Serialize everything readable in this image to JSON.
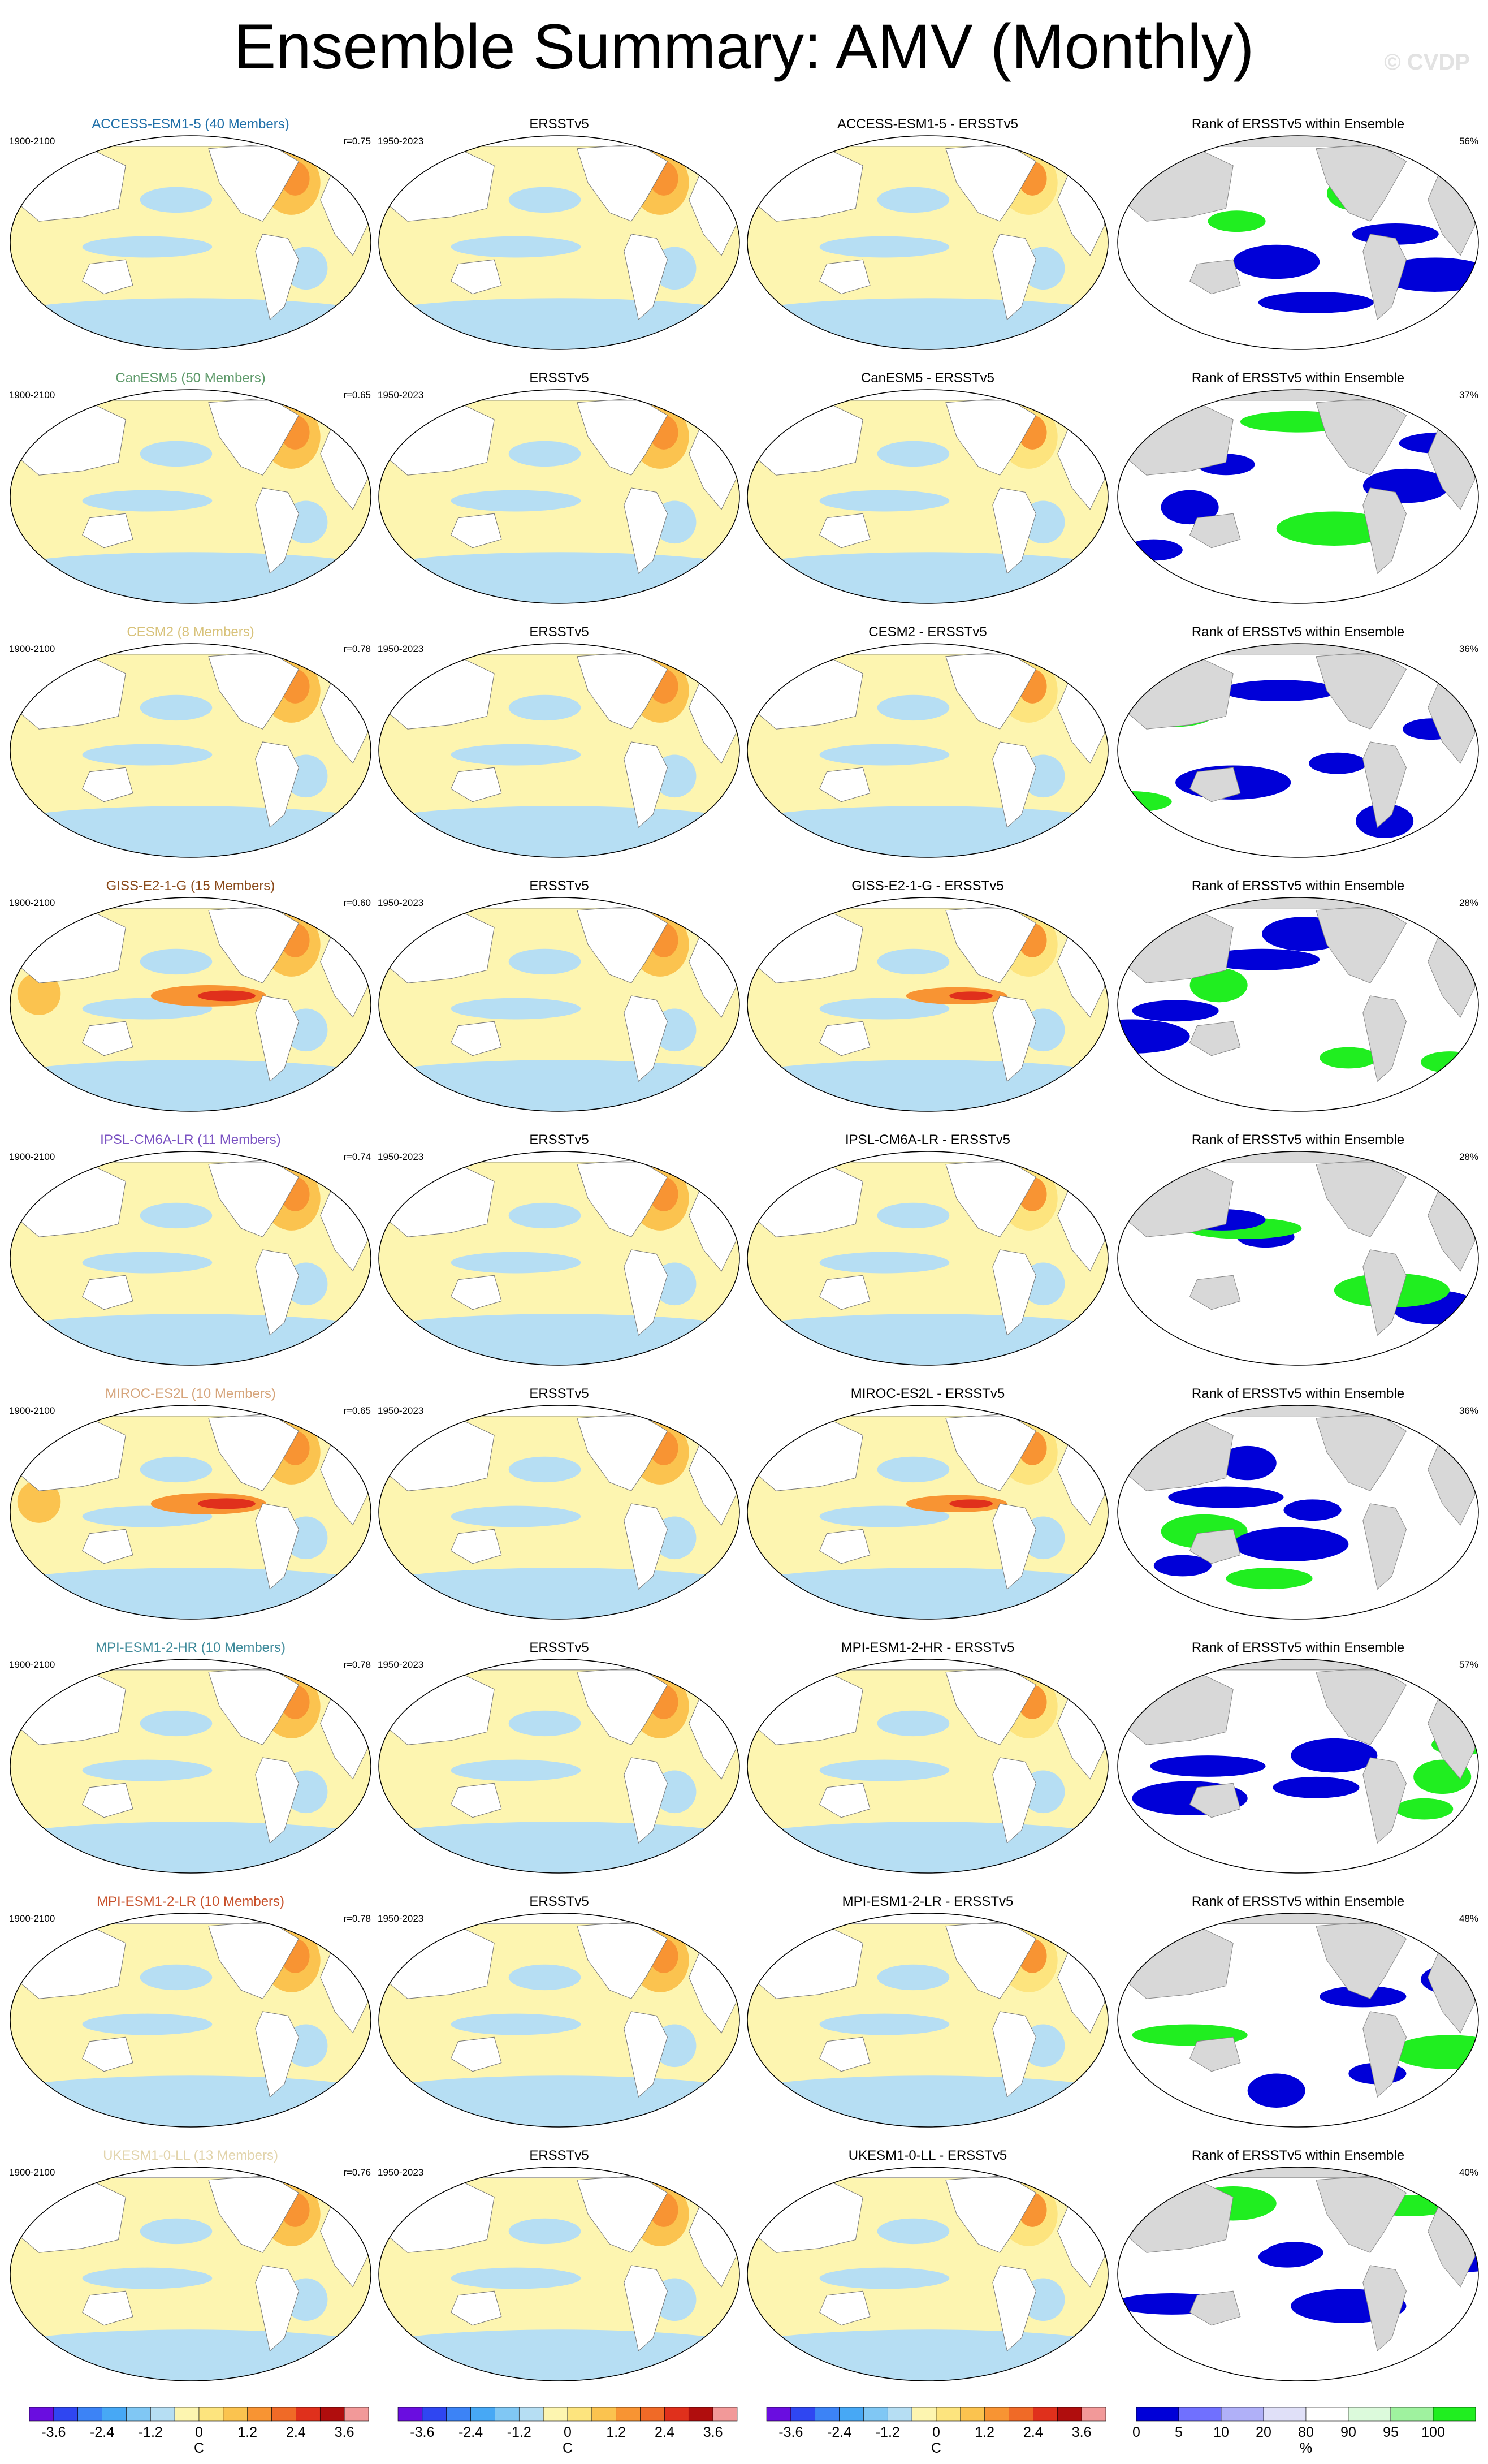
{
  "title": "Ensemble Summary: AMV (Monthly)",
  "credit": "© CVDP",
  "obs_period": "1950-2023",
  "model_period": "1900-2100",
  "obs_title": "ERSSTv5",
  "rank_title": "Rank of ERSSTv5 within Ensemble",
  "colorbar_unit_sst": "C",
  "colorbar_unit_rank": "%",
  "sst_colorbar_ticks": [
    "-3.6",
    "-2.4",
    "-1.2",
    "0",
    "1.2",
    "2.4",
    "3.6"
  ],
  "rank_colorbar_ticks": [
    "0",
    "5",
    "10",
    "20",
    "80",
    "90",
    "95",
    "100"
  ],
  "sst_colors": [
    "#6a0de0",
    "#2f46f2",
    "#3c83f6",
    "#47a8f5",
    "#80c7f4",
    "#b6def3",
    "#fdf5b0",
    "#fde47e",
    "#fbc34f",
    "#f89433",
    "#f06a27",
    "#e0301c",
    "#b00d0d",
    "#f29999"
  ],
  "rank_colors": [
    "#0000d8",
    "#7070ff",
    "#b0b0f8",
    "#e0e0f8",
    "#ffffff",
    "#dcfadc",
    "#9ff29f",
    "#20ee20"
  ],
  "rows": [
    {
      "model": "ACCESS-ESM1-5 (40 Members)",
      "color": "#1f6fa8",
      "r": "r=0.75",
      "diff_title": "ACCESS-ESM1-5 - ERSSTv5",
      "rank_pct": "56%"
    },
    {
      "model": "CanESM5 (50 Members)",
      "color": "#5e9a6a",
      "r": "r=0.65",
      "diff_title": "CanESM5 - ERSSTv5",
      "rank_pct": "37%"
    },
    {
      "model": "CESM2 (8 Members)",
      "color": "#d8c27a",
      "r": "r=0.78",
      "diff_title": "CESM2 - ERSSTv5",
      "rank_pct": "36%"
    },
    {
      "model": "GISS-E2-1-G (15 Members)",
      "color": "#8a4a1a",
      "r": "r=0.60",
      "diff_title": "GISS-E2-1-G - ERSSTv5",
      "rank_pct": "28%"
    },
    {
      "model": "IPSL-CM6A-LR (11 Members)",
      "color": "#7a52c2",
      "r": "r=0.74",
      "diff_title": "IPSL-CM6A-LR - ERSSTv5",
      "rank_pct": "28%"
    },
    {
      "model": "MIROC-ES2L (10 Members)",
      "color": "#d6a47a",
      "r": "r=0.65",
      "diff_title": "MIROC-ES2L - ERSSTv5",
      "rank_pct": "36%"
    },
    {
      "model": "MPI-ESM1-2-HR (10 Members)",
      "color": "#3e8a9a",
      "r": "r=0.78",
      "diff_title": "MPI-ESM1-2-HR - ERSSTv5",
      "rank_pct": "57%"
    },
    {
      "model": "MPI-ESM1-2-LR (10 Members)",
      "color": "#c8502a",
      "r": "r=0.78",
      "diff_title": "MPI-ESM1-2-LR - ERSSTv5",
      "rank_pct": "48%"
    },
    {
      "model": "UKESM1-0-LL (13 Members)",
      "color": "#e2d4ac",
      "r": "r=0.76",
      "diff_title": "UKESM1-0-LL - ERSSTv5",
      "rank_pct": "40%"
    }
  ],
  "chart_data": {
    "type": "heatmap",
    "title": "Ensemble Summary: AMV (Monthly)",
    "panels_per_row": [
      "model ensemble mean AMV pattern",
      "ERSSTv5 observed AMV pattern (1950-2023)",
      "model minus ERSSTv5 difference",
      "rank of ERSSTv5 within ensemble (%)"
    ],
    "sst_colorbar": {
      "unit": "C",
      "ticks": [
        -3.6,
        -2.4,
        -1.2,
        0,
        1.2,
        2.4,
        3.6
      ]
    },
    "rank_colorbar": {
      "unit": "%",
      "ticks": [
        0,
        5,
        10,
        20,
        80,
        90,
        95,
        100
      ]
    },
    "pattern_correlations": [
      {
        "model": "ACCESS-ESM1-5",
        "members": 40,
        "r": 0.75,
        "rank_pct": 56
      },
      {
        "model": "CanESM5",
        "members": 50,
        "r": 0.65,
        "rank_pct": 37
      },
      {
        "model": "CESM2",
        "members": 8,
        "r": 0.78,
        "rank_pct": 36
      },
      {
        "model": "GISS-E2-1-G",
        "members": 15,
        "r": 0.6,
        "rank_pct": 28
      },
      {
        "model": "IPSL-CM6A-LR",
        "members": 11,
        "r": 0.74,
        "rank_pct": 28
      },
      {
        "model": "MIROC-ES2L",
        "members": 10,
        "r": 0.65,
        "rank_pct": 36
      },
      {
        "model": "MPI-ESM1-2-HR",
        "members": 10,
        "r": 0.78,
        "rank_pct": 57
      },
      {
        "model": "MPI-ESM1-2-LR",
        "members": 10,
        "r": 0.78,
        "rank_pct": 48
      },
      {
        "model": "UKESM1-0-LL",
        "members": 13,
        "r": 0.76,
        "rank_pct": 40
      }
    ]
  }
}
